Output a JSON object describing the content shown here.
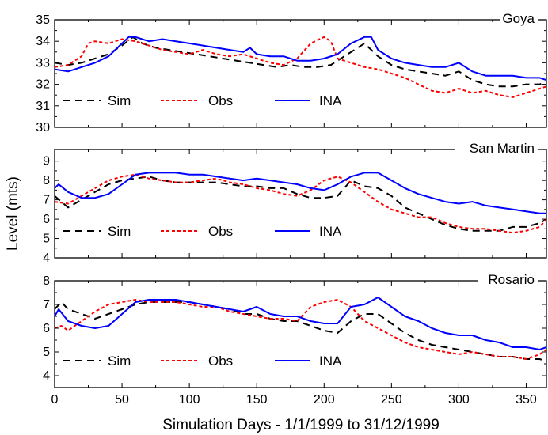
{
  "chart_data": {
    "type": "line",
    "xlabel": "Simulation Days - 1/1/1999 to 31/12/1999",
    "ylabel": "Level (mts)",
    "xlim": [
      0,
      365
    ],
    "xticks": [
      0,
      50,
      100,
      150,
      200,
      250,
      300,
      350
    ],
    "legend_position": "lower-left",
    "series_styles": [
      {
        "name": "Sim",
        "color": "#000000",
        "dash": "dashed"
      },
      {
        "name": "Obs",
        "color": "#ff0000",
        "dash": "dotted"
      },
      {
        "name": "INA",
        "color": "#0000ff",
        "dash": "solid"
      }
    ],
    "panels": [
      {
        "title": "Goya",
        "ylim": [
          30,
          35
        ],
        "yticks": [
          30,
          31,
          32,
          33,
          34,
          35
        ],
        "series": [
          {
            "name": "Sim",
            "x": [
              0,
              10,
              20,
              30,
              40,
              50,
              58,
              65,
              75,
              85,
              95,
              105,
              115,
              125,
              135,
              145,
              155,
              165,
              175,
              185,
              195,
              205,
              215,
              225,
              230,
              240,
              250,
              260,
              270,
              280,
              290,
              300,
              310,
              320,
              330,
              340,
              350,
              360,
              365
            ],
            "y": [
              33.0,
              32.9,
              33.0,
              33.2,
              33.4,
              33.8,
              34.2,
              33.9,
              33.7,
              33.6,
              33.5,
              33.4,
              33.3,
              33.2,
              33.1,
              33.0,
              32.9,
              32.8,
              32.9,
              32.8,
              32.8,
              32.9,
              33.3,
              33.7,
              33.9,
              33.3,
              32.9,
              32.7,
              32.6,
              32.5,
              32.4,
              32.6,
              32.2,
              32.0,
              31.9,
              31.9,
              32.0,
              32.0,
              32.1
            ]
          },
          {
            "name": "Obs",
            "x": [
              0,
              10,
              20,
              25,
              30,
              40,
              50,
              60,
              70,
              80,
              90,
              100,
              110,
              120,
              130,
              140,
              150,
              160,
              170,
              180,
              190,
              200,
              205,
              210,
              220,
              230,
              240,
              250,
              260,
              270,
              280,
              290,
              300,
              310,
              320,
              330,
              340,
              350,
              360,
              365
            ],
            "y": [
              32.8,
              32.9,
              33.3,
              33.9,
              34.0,
              33.9,
              34.1,
              34.0,
              33.8,
              33.6,
              33.5,
              33.4,
              33.6,
              33.4,
              33.3,
              33.4,
              33.2,
              33.0,
              32.9,
              33.2,
              33.9,
              34.2,
              34.0,
              33.2,
              33.0,
              32.8,
              32.7,
              32.5,
              32.3,
              32.0,
              31.7,
              31.6,
              31.8,
              31.6,
              31.7,
              31.5,
              31.4,
              31.6,
              31.8,
              31.9
            ]
          },
          {
            "name": "INA",
            "x": [
              0,
              10,
              20,
              30,
              40,
              50,
              55,
              60,
              70,
              80,
              90,
              100,
              110,
              120,
              130,
              140,
              145,
              150,
              160,
              170,
              180,
              190,
              200,
              210,
              220,
              230,
              235,
              240,
              250,
              260,
              270,
              280,
              290,
              300,
              310,
              320,
              330,
              340,
              350,
              360,
              365
            ],
            "y": [
              32.7,
              32.6,
              32.8,
              33.0,
              33.3,
              33.9,
              34.2,
              34.2,
              34.0,
              34.1,
              34.0,
              33.9,
              33.8,
              33.7,
              33.6,
              33.5,
              33.7,
              33.4,
              33.3,
              33.3,
              33.1,
              33.1,
              33.2,
              33.4,
              33.9,
              34.2,
              34.2,
              33.6,
              33.2,
              33.0,
              32.9,
              32.8,
              32.8,
              33.0,
              32.6,
              32.4,
              32.4,
              32.4,
              32.3,
              32.3,
              32.2
            ]
          }
        ]
      },
      {
        "title": "San Martin",
        "ylim": [
          4,
          9.6
        ],
        "yticks": [
          4,
          5,
          6,
          7,
          8,
          9
        ],
        "series": [
          {
            "name": "Sim",
            "x": [
              0,
              5,
              10,
              20,
              30,
              40,
              50,
              60,
              70,
              80,
              90,
              100,
              110,
              120,
              130,
              140,
              150,
              160,
              170,
              180,
              190,
              200,
              210,
              220,
              230,
              240,
              250,
              260,
              270,
              280,
              290,
              300,
              310,
              320,
              330,
              340,
              350,
              360,
              365
            ],
            "y": [
              7.2,
              6.9,
              6.6,
              7.0,
              7.4,
              7.8,
              8.0,
              8.1,
              8.2,
              8.0,
              7.9,
              7.9,
              7.9,
              7.9,
              7.8,
              7.7,
              7.7,
              7.6,
              7.6,
              7.3,
              7.1,
              7.1,
              7.2,
              8.0,
              7.7,
              7.6,
              7.2,
              6.6,
              6.3,
              6.0,
              5.7,
              5.5,
              5.4,
              5.4,
              5.4,
              5.6,
              5.6,
              5.8,
              6.0
            ]
          },
          {
            "name": "Obs",
            "x": [
              0,
              10,
              20,
              30,
              40,
              50,
              60,
              70,
              80,
              90,
              100,
              110,
              120,
              130,
              140,
              150,
              160,
              170,
              180,
              190,
              200,
              210,
              220,
              230,
              240,
              250,
              260,
              270,
              280,
              290,
              300,
              310,
              320,
              330,
              340,
              350,
              360,
              365
            ],
            "y": [
              6.9,
              6.8,
              7.2,
              7.6,
              8.0,
              8.2,
              8.3,
              8.1,
              8.0,
              7.9,
              7.9,
              8.0,
              8.1,
              7.9,
              7.8,
              7.6,
              7.5,
              7.3,
              7.2,
              7.5,
              8.0,
              8.2,
              7.9,
              7.4,
              6.9,
              6.5,
              6.3,
              6.1,
              6.1,
              5.8,
              5.6,
              5.5,
              5.5,
              5.4,
              5.3,
              5.4,
              5.6,
              6.0
            ]
          },
          {
            "name": "INA",
            "x": [
              0,
              3,
              10,
              20,
              30,
              40,
              50,
              60,
              70,
              80,
              90,
              100,
              110,
              120,
              130,
              140,
              150,
              160,
              170,
              180,
              190,
              200,
              210,
              220,
              230,
              240,
              250,
              260,
              270,
              280,
              290,
              300,
              310,
              320,
              330,
              340,
              350,
              360,
              365
            ],
            "y": [
              7.6,
              7.8,
              7.4,
              7.1,
              7.1,
              7.3,
              7.8,
              8.3,
              8.4,
              8.4,
              8.4,
              8.3,
              8.3,
              8.2,
              8.1,
              8.0,
              8.1,
              8.0,
              7.9,
              7.8,
              7.6,
              7.5,
              7.8,
              8.2,
              8.4,
              8.4,
              8.0,
              7.6,
              7.3,
              7.1,
              6.9,
              6.8,
              6.9,
              6.7,
              6.6,
              6.5,
              6.4,
              6.3,
              6.3
            ]
          }
        ]
      },
      {
        "title": "Rosario",
        "ylim": [
          3.5,
          8
        ],
        "yticks": [
          4,
          5,
          6,
          7,
          8
        ],
        "series": [
          {
            "name": "Sim",
            "x": [
              0,
              5,
              10,
              20,
              30,
              40,
              50,
              60,
              70,
              80,
              90,
              100,
              110,
              120,
              130,
              140,
              150,
              160,
              170,
              180,
              190,
              200,
              210,
              220,
              230,
              240,
              250,
              260,
              270,
              280,
              290,
              300,
              310,
              320,
              330,
              340,
              350,
              360,
              365
            ],
            "y": [
              6.8,
              7.1,
              6.8,
              6.6,
              6.4,
              6.6,
              6.8,
              7.0,
              7.1,
              7.1,
              7.1,
              7.1,
              7.0,
              6.9,
              6.8,
              6.6,
              6.6,
              6.4,
              6.3,
              6.3,
              6.1,
              5.9,
              5.8,
              6.3,
              6.6,
              6.6,
              6.2,
              5.8,
              5.5,
              5.3,
              5.2,
              5.1,
              5.0,
              4.9,
              4.8,
              4.8,
              4.7,
              4.7,
              4.6
            ]
          },
          {
            "name": "Obs",
            "x": [
              0,
              5,
              10,
              20,
              30,
              40,
              50,
              60,
              70,
              80,
              90,
              100,
              110,
              120,
              130,
              140,
              150,
              160,
              170,
              180,
              190,
              200,
              210,
              220,
              230,
              240,
              250,
              260,
              270,
              280,
              290,
              300,
              310,
              320,
              330,
              340,
              350,
              360,
              365
            ],
            "y": [
              6.0,
              6.1,
              5.9,
              6.3,
              6.7,
              7.0,
              7.1,
              7.2,
              7.1,
              7.1,
              7.1,
              7.0,
              6.9,
              6.9,
              6.7,
              6.6,
              6.5,
              6.4,
              6.4,
              6.3,
              6.9,
              7.1,
              7.2,
              6.9,
              6.3,
              6.0,
              5.7,
              5.4,
              5.2,
              5.1,
              5.0,
              4.9,
              5.0,
              4.9,
              4.8,
              4.8,
              4.7,
              4.9,
              5.1
            ]
          },
          {
            "name": "INA",
            "x": [
              0,
              3,
              10,
              20,
              30,
              40,
              50,
              60,
              70,
              80,
              90,
              100,
              110,
              120,
              130,
              140,
              150,
              160,
              170,
              180,
              190,
              200,
              210,
              220,
              230,
              240,
              250,
              260,
              270,
              280,
              290,
              300,
              310,
              320,
              330,
              340,
              350,
              360,
              365
            ],
            "y": [
              6.5,
              6.8,
              6.3,
              6.1,
              6.0,
              6.1,
              6.6,
              7.1,
              7.2,
              7.2,
              7.2,
              7.1,
              7.0,
              6.9,
              6.8,
              6.7,
              6.9,
              6.6,
              6.5,
              6.5,
              6.3,
              6.2,
              6.2,
              6.9,
              7.0,
              7.3,
              6.9,
              6.5,
              6.3,
              6.0,
              5.8,
              5.7,
              5.7,
              5.5,
              5.4,
              5.2,
              5.2,
              5.1,
              5.2
            ]
          }
        ]
      }
    ]
  }
}
